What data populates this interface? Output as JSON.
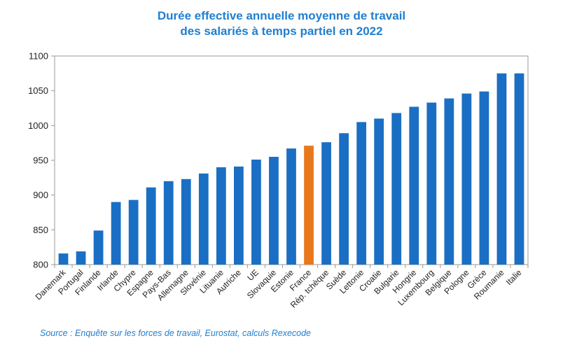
{
  "chart_data": {
    "type": "bar",
    "title_line1": "Durée effective annuelle moyenne de travail",
    "title_line2": "des salariés à temps partiel en 2022",
    "xlabel": "",
    "ylabel": "",
    "ylim": [
      800,
      1100
    ],
    "yticks": [
      800,
      850,
      900,
      950,
      1000,
      1050,
      1100
    ],
    "grid": false,
    "categories": [
      "Danemark",
      "Portugal",
      "Finlande",
      "Irlande",
      "Chypre",
      "Espagne",
      "Pays-Bas",
      "Allemagne",
      "Slovénie",
      "Lituanie",
      "Autriche",
      "UE",
      "Slovaquie",
      "Estonie",
      "France",
      "Rép. tchèque",
      "Suède",
      "Lettonie",
      "Croatie",
      "Bulgarie",
      "Hongrie",
      "Luxembourg",
      "Belgique",
      "Pologne",
      "Grèce",
      "Roumanie",
      "Italie"
    ],
    "values": [
      816,
      819,
      849,
      890,
      893,
      911,
      920,
      923,
      931,
      940,
      941,
      951,
      955,
      967,
      971,
      976,
      989,
      1005,
      1010,
      1018,
      1027,
      1033,
      1039,
      1046,
      1049,
      1075,
      1075
    ],
    "bar_color": "#1a6fc4",
    "highlight_category": "France",
    "highlight_color": "#e8781e"
  },
  "source": "Source : Enquête sur les forces de travail, Eurostat, calculs Rexecode"
}
